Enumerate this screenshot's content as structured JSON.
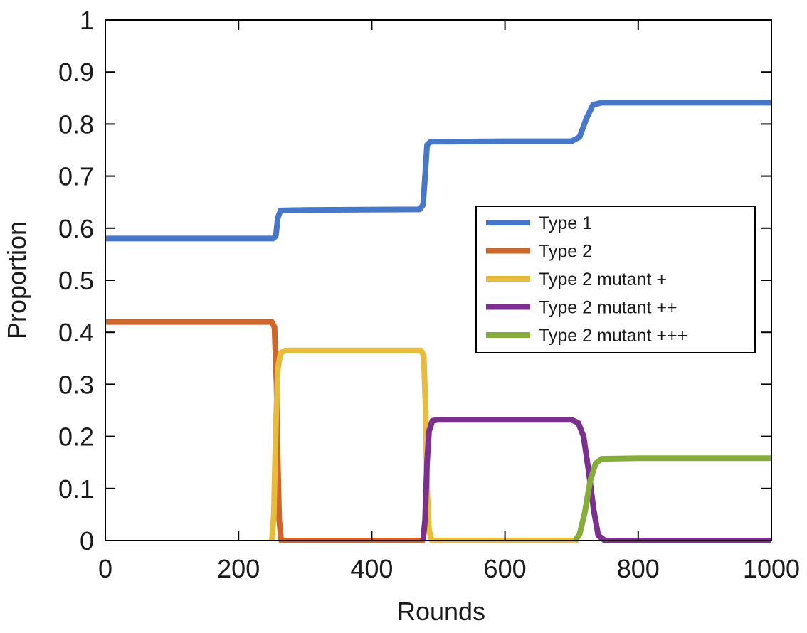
{
  "chart_data": {
    "type": "line",
    "xlabel": "Rounds",
    "ylabel": "Proportion",
    "xlim": [
      0,
      1000
    ],
    "ylim": [
      0,
      1
    ],
    "xticks": [
      0,
      200,
      400,
      600,
      800,
      1000
    ],
    "yticks": [
      0,
      0.1,
      0.2,
      0.3,
      0.4,
      0.5,
      0.6,
      0.7,
      0.8,
      0.9,
      1
    ],
    "xtick_labels": [
      "0",
      "200",
      "400",
      "600",
      "800",
      "1000"
    ],
    "ytick_labels": [
      "0",
      "0.1",
      "0.2",
      "0.3",
      "0.4",
      "0.5",
      "0.6",
      "0.7",
      "0.8",
      "0.9",
      "1"
    ],
    "grid": false,
    "legend_position": "right-middle",
    "series": [
      {
        "name": "Type 1",
        "color": "#4677c8",
        "points": [
          [
            0,
            0.58
          ],
          [
            252,
            0.58
          ],
          [
            256,
            0.585
          ],
          [
            259,
            0.62
          ],
          [
            263,
            0.634
          ],
          [
            300,
            0.635
          ],
          [
            472,
            0.636
          ],
          [
            477,
            0.645
          ],
          [
            480,
            0.7
          ],
          [
            483,
            0.76
          ],
          [
            488,
            0.766
          ],
          [
            600,
            0.767
          ],
          [
            700,
            0.767
          ],
          [
            712,
            0.775
          ],
          [
            722,
            0.81
          ],
          [
            732,
            0.837
          ],
          [
            745,
            0.841
          ],
          [
            800,
            0.841
          ],
          [
            1000,
            0.841
          ]
        ]
      },
      {
        "name": "Type 2",
        "color": "#d0652a",
        "points": [
          [
            0,
            0.42
          ],
          [
            250,
            0.42
          ],
          [
            254,
            0.41
          ],
          [
            257,
            0.3
          ],
          [
            259,
            0.15
          ],
          [
            261,
            0.04
          ],
          [
            264,
            0.0
          ],
          [
            400,
            0.0
          ],
          [
            480,
            0.0
          ]
        ]
      },
      {
        "name": "Type 2 mutant +",
        "color": "#e8bb3a",
        "points": [
          [
            250,
            0.0
          ],
          [
            253,
            0.05
          ],
          [
            256,
            0.22
          ],
          [
            259,
            0.33
          ],
          [
            263,
            0.36
          ],
          [
            270,
            0.365
          ],
          [
            400,
            0.365
          ],
          [
            474,
            0.365
          ],
          [
            478,
            0.355
          ],
          [
            481,
            0.25
          ],
          [
            483,
            0.1
          ],
          [
            486,
            0.02
          ],
          [
            490,
            0.0
          ],
          [
            600,
            0.0
          ],
          [
            710,
            0.0
          ]
        ]
      },
      {
        "name": "Type 2 mutant ++",
        "color": "#7b2f8e",
        "points": [
          [
            477,
            0.0
          ],
          [
            480,
            0.04
          ],
          [
            483,
            0.15
          ],
          [
            486,
            0.21
          ],
          [
            491,
            0.23
          ],
          [
            500,
            0.232
          ],
          [
            700,
            0.232
          ],
          [
            710,
            0.226
          ],
          [
            718,
            0.2
          ],
          [
            726,
            0.13
          ],
          [
            733,
            0.06
          ],
          [
            740,
            0.01
          ],
          [
            750,
            0.0
          ],
          [
            1000,
            0.0
          ]
        ]
      },
      {
        "name": "Type 2 mutant +++",
        "color": "#86ad3a",
        "points": [
          [
            705,
            0.0
          ],
          [
            712,
            0.012
          ],
          [
            720,
            0.055
          ],
          [
            728,
            0.115
          ],
          [
            736,
            0.148
          ],
          [
            745,
            0.157
          ],
          [
            800,
            0.158
          ],
          [
            1000,
            0.158
          ]
        ]
      }
    ]
  }
}
